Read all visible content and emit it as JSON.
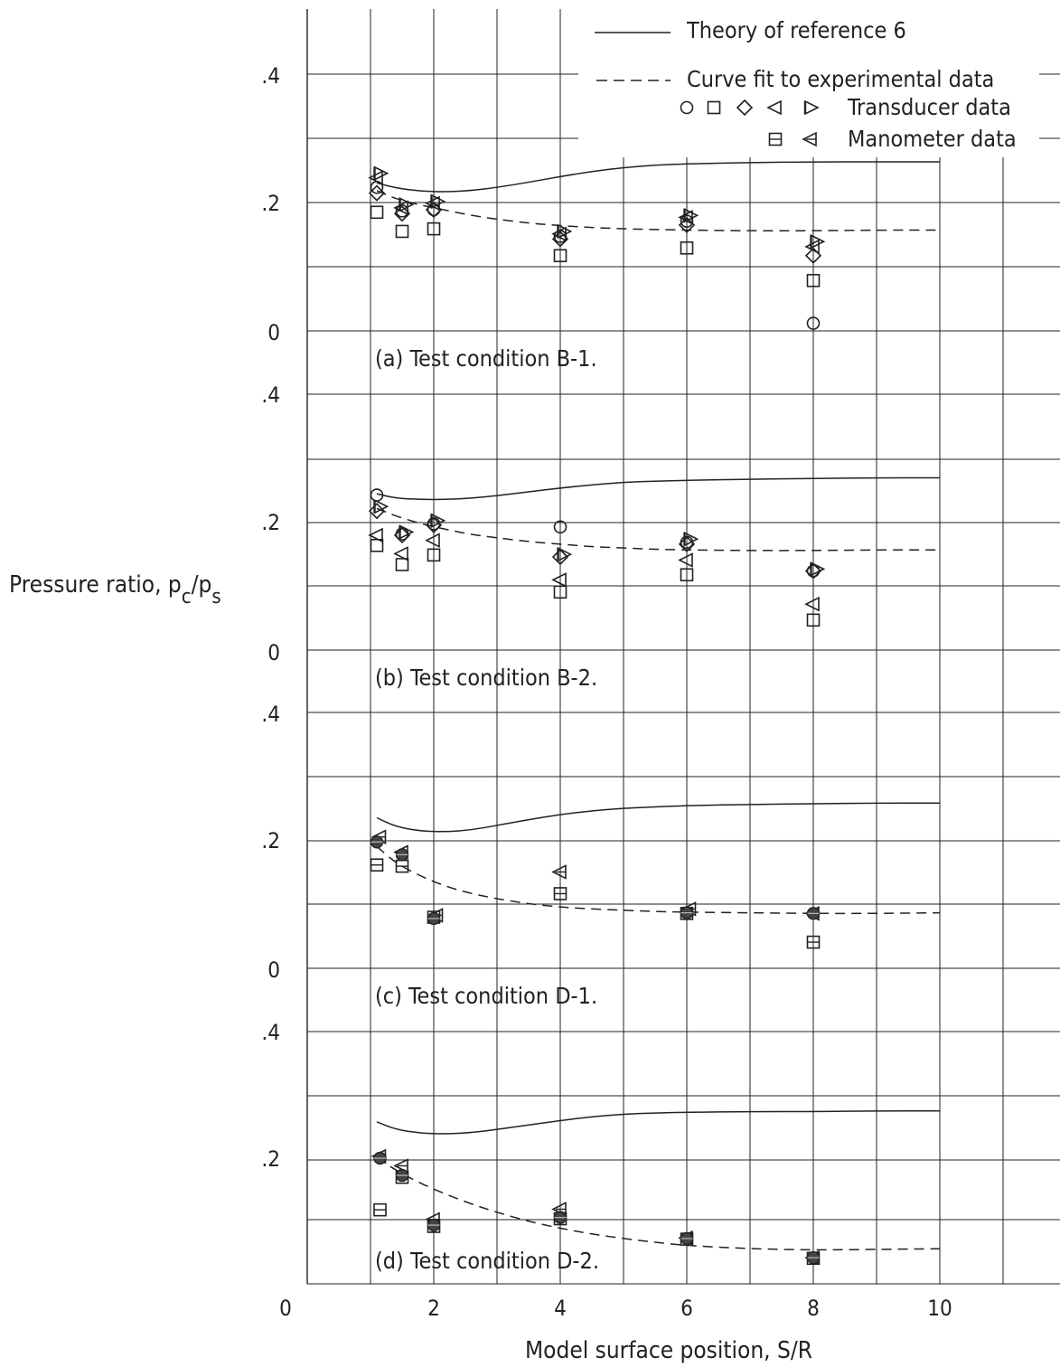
{
  "figure": {
    "ylabel_main": "Pressure ratio, p",
    "ylabel_sub1": "c",
    "ylabel_slash": "/p",
    "ylabel_sub2": "s",
    "xlabel": "Model surface position, S/R",
    "x_ticks": [
      "0",
      "2",
      "4",
      "6",
      "8",
      "10"
    ],
    "y_ticks": [
      ".4",
      ".2",
      "0"
    ]
  },
  "legend": {
    "theory": "Theory of reference 6",
    "curve_fit": "Curve fit to experimental data",
    "transducer": "Transducer data",
    "manometer": "Manometer data"
  },
  "chart_data": [
    {
      "type": "scatter",
      "title": "(a) Test condition B-1.",
      "xlim": [
        0,
        11.5
      ],
      "ylim": [
        0,
        0.5
      ],
      "series": [
        {
          "name": "Theory of reference 6",
          "kind": "theory",
          "x": [
            1.1,
            1.4,
            1.8,
            2.2,
            2.6,
            3.0,
            3.5,
            4.0,
            4.5,
            5.0,
            5.5,
            6.0,
            7.0,
            8.0,
            9.0,
            10.0
          ],
          "y": [
            0.232,
            0.224,
            0.219,
            0.218,
            0.22,
            0.225,
            0.233,
            0.242,
            0.25,
            0.256,
            0.26,
            0.262,
            0.264,
            0.265,
            0.265,
            0.265
          ]
        },
        {
          "name": "Curve fit to experimental data",
          "kind": "fit",
          "x": [
            1.1,
            1.4,
            1.8,
            2.2,
            2.6,
            3.0,
            3.5,
            4.0,
            4.5,
            5.0,
            5.5,
            6.0,
            7.0,
            8.0,
            9.0,
            10.0
          ],
          "y": [
            0.22,
            0.207,
            0.197,
            0.189,
            0.181,
            0.175,
            0.169,
            0.165,
            0.162,
            0.16,
            0.159,
            0.158,
            0.157,
            0.157,
            0.158,
            0.158
          ]
        },
        {
          "marker": "circle",
          "x": [
            1.1,
            1.5,
            2.0,
            4.0,
            6.0,
            8.0
          ],
          "y": [
            0.225,
            0.188,
            0.19,
            0.148,
            0.172,
            0.012
          ]
        },
        {
          "marker": "square",
          "x": [
            1.1,
            1.5,
            2.0,
            4.0,
            6.0,
            8.0
          ],
          "y": [
            0.186,
            0.156,
            0.16,
            0.118,
            0.13,
            0.079
          ]
        },
        {
          "marker": "diamond",
          "x": [
            1.1,
            1.5,
            2.0,
            4.0,
            6.0,
            8.0
          ],
          "y": [
            0.216,
            0.184,
            0.19,
            0.144,
            0.166,
            0.118
          ]
        },
        {
          "marker": "triangle-left",
          "x": [
            1.1,
            1.5,
            2.0,
            4.0,
            6.0,
            8.0
          ],
          "y": [
            0.24,
            0.193,
            0.2,
            0.152,
            0.178,
            0.132
          ]
        },
        {
          "marker": "triangle-right",
          "x": [
            1.15,
            1.55,
            2.05,
            4.05,
            6.05,
            8.05
          ],
          "y": [
            0.247,
            0.198,
            0.203,
            0.156,
            0.181,
            0.14
          ]
        }
      ]
    },
    {
      "type": "scatter",
      "title": "(b) Test condition B-2.",
      "xlim": [
        0,
        11.5
      ],
      "ylim": [
        0,
        0.5
      ],
      "series": [
        {
          "name": "Theory of reference 6",
          "kind": "theory",
          "x": [
            1.1,
            1.4,
            1.8,
            2.2,
            2.6,
            3.0,
            3.5,
            4.0,
            4.5,
            5.0,
            5.5,
            6.0,
            7.0,
            8.0,
            9.0,
            10.0
          ],
          "y": [
            0.245,
            0.238,
            0.236,
            0.236,
            0.238,
            0.242,
            0.248,
            0.254,
            0.259,
            0.263,
            0.265,
            0.266,
            0.268,
            0.269,
            0.27,
            0.27
          ]
        },
        {
          "name": "Curve fit to experimental data",
          "kind": "fit",
          "x": [
            1.1,
            1.4,
            1.8,
            2.2,
            2.6,
            3.0,
            3.5,
            4.0,
            4.5,
            5.0,
            5.5,
            6.0,
            7.0,
            8.0,
            9.0,
            10.0
          ],
          "y": [
            0.222,
            0.21,
            0.198,
            0.189,
            0.181,
            0.176,
            0.17,
            0.166,
            0.162,
            0.16,
            0.158,
            0.157,
            0.156,
            0.156,
            0.157,
            0.157
          ]
        },
        {
          "marker": "circle",
          "x": [
            1.1,
            1.5,
            2.0,
            4.0,
            6.0,
            8.0
          ],
          "y": [
            0.243,
            0.182,
            0.198,
            0.193,
            0.169,
            0.124
          ]
        },
        {
          "marker": "square",
          "x": [
            1.1,
            1.5,
            2.0,
            4.0,
            6.0,
            8.0
          ],
          "y": [
            0.164,
            0.134,
            0.149,
            0.091,
            0.118,
            0.047
          ]
        },
        {
          "marker": "diamond",
          "x": [
            1.1,
            1.5,
            2.0,
            4.0,
            6.0,
            8.0
          ],
          "y": [
            0.218,
            0.18,
            0.196,
            0.146,
            0.166,
            0.124
          ]
        },
        {
          "marker": "triangle-left",
          "x": [
            1.1,
            1.5,
            2.0,
            4.0,
            6.0,
            8.0
          ],
          "y": [
            0.18,
            0.151,
            0.172,
            0.11,
            0.141,
            0.072
          ]
        },
        {
          "marker": "triangle-right",
          "x": [
            1.15,
            1.55,
            2.05,
            4.05,
            6.05,
            8.05
          ],
          "y": [
            0.225,
            0.185,
            0.203,
            0.15,
            0.174,
            0.127
          ]
        }
      ]
    },
    {
      "type": "scatter",
      "title": "(c) Test condition D-1.",
      "xlim": [
        0,
        11.5
      ],
      "ylim": [
        0,
        0.5
      ],
      "series": [
        {
          "name": "Theory of reference 6",
          "kind": "theory",
          "x": [
            1.1,
            1.4,
            1.8,
            2.2,
            2.6,
            3.0,
            3.5,
            4.0,
            4.5,
            5.0,
            5.5,
            6.0,
            7.0,
            8.0,
            9.0,
            10.0
          ],
          "y": [
            0.236,
            0.222,
            0.215,
            0.214,
            0.217,
            0.224,
            0.233,
            0.241,
            0.247,
            0.251,
            0.253,
            0.255,
            0.257,
            0.258,
            0.259,
            0.259
          ]
        },
        {
          "name": "Curve fit to experimental data",
          "kind": "fit",
          "x": [
            1.1,
            1.4,
            1.8,
            2.2,
            2.6,
            3.0,
            3.5,
            4.0,
            4.5,
            5.0,
            5.5,
            6.0,
            7.0,
            8.0,
            9.0,
            10.0
          ],
          "y": [
            0.191,
            0.165,
            0.144,
            0.128,
            0.117,
            0.109,
            0.101,
            0.096,
            0.093,
            0.091,
            0.089,
            0.088,
            0.087,
            0.086,
            0.086,
            0.087
          ]
        },
        {
          "marker": "manometer-square",
          "x": [
            1.1,
            1.5,
            2.0,
            4.0,
            6.0,
            8.0
          ],
          "y": [
            0.162,
            0.16,
            0.08,
            0.117,
            0.086,
            0.041
          ]
        },
        {
          "marker": "manometer-triangle",
          "x": [
            1.15,
            1.5,
            2.05,
            4.0,
            6.05,
            8.0
          ],
          "y": [
            0.206,
            0.182,
            0.083,
            0.151,
            0.093,
            0.086
          ]
        },
        {
          "marker": "filled",
          "x": [
            1.1,
            1.5,
            2.0,
            6.0,
            8.0
          ],
          "y": [
            0.198,
            0.178,
            0.078,
            0.087,
            0.086
          ]
        }
      ]
    },
    {
      "type": "scatter",
      "title": "(d) Test condition D-2.",
      "xlim": [
        0,
        11.5
      ],
      "ylim": [
        0,
        0.5
      ],
      "series": [
        {
          "name": "Theory of reference 6",
          "kind": "theory",
          "x": [
            1.1,
            1.4,
            1.8,
            2.2,
            2.6,
            3.0,
            3.5,
            4.0,
            4.5,
            5.0,
            5.5,
            6.0,
            7.0,
            8.0,
            9.0,
            10.0
          ],
          "y": [
            0.254,
            0.242,
            0.236,
            0.235,
            0.237,
            0.242,
            0.249,
            0.256,
            0.262,
            0.266,
            0.268,
            0.269,
            0.27,
            0.27,
            0.271,
            0.271
          ]
        },
        {
          "name": "Curve fit to experimental data",
          "kind": "fit",
          "x": [
            1.1,
            1.4,
            1.8,
            2.2,
            2.6,
            3.0,
            3.5,
            4.0,
            4.5,
            5.0,
            5.5,
            6.0,
            7.0,
            8.0,
            9.0,
            10.0
          ],
          "y": [
            0.198,
            0.178,
            0.157,
            0.14,
            0.125,
            0.112,
            0.098,
            0.087,
            0.078,
            0.071,
            0.065,
            0.06,
            0.055,
            0.053,
            0.054,
            0.055
          ]
        },
        {
          "marker": "manometer-square",
          "x": [
            1.15,
            1.5,
            2.0,
            4.0,
            6.0,
            8.0
          ],
          "y": [
            0.116,
            0.167,
            0.09,
            0.102,
            0.07,
            0.04
          ]
        },
        {
          "marker": "manometer-triangle",
          "x": [
            1.15,
            1.5,
            2.0,
            4.0,
            6.0,
            8.0
          ],
          "y": [
            0.2,
            0.185,
            0.101,
            0.117,
            0.072,
            0.041
          ]
        },
        {
          "marker": "filled",
          "x": [
            1.15,
            1.5,
            2.0,
            4.0,
            6.0,
            8.0
          ],
          "y": [
            0.197,
            0.17,
            0.092,
            0.104,
            0.071,
            0.041
          ]
        }
      ]
    }
  ]
}
